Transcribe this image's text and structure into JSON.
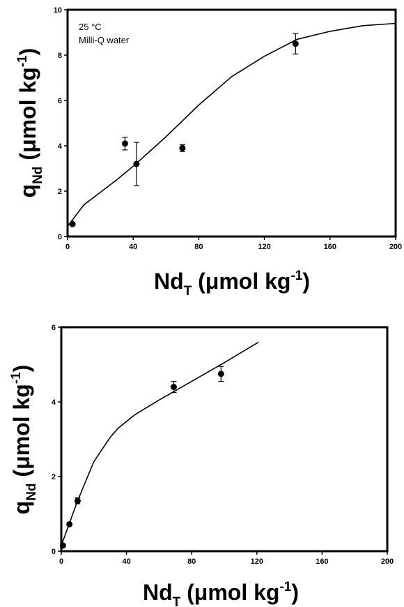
{
  "chart_data": [
    {
      "type": "scatter",
      "annotations": [
        "25 °C",
        "Milli-Q water"
      ],
      "xlabel": {
        "main": "Nd",
        "sub": "T",
        "units": " (μmol kg",
        "sup": "-1",
        "close": ")"
      },
      "ylabel": {
        "main": "q",
        "sub": "Nd",
        "units": " (μmol kg",
        "sup": "-1",
        "close": ")"
      },
      "xlim": [
        0,
        200
      ],
      "ylim": [
        0,
        10
      ],
      "xticks": [
        0,
        40,
        80,
        120,
        160,
        200
      ],
      "yticks": [
        0,
        2,
        4,
        6,
        8,
        10
      ],
      "series": [
        {
          "kind": "points",
          "points": [
            {
              "x": 3,
              "y": 0.55,
              "err": 0
            },
            {
              "x": 35,
              "y": 4.1,
              "err": 0.28
            },
            {
              "x": 42,
              "y": 3.2,
              "err": 0.95
            },
            {
              "x": 70,
              "y": 3.9,
              "err": 0.15
            },
            {
              "x": 139,
              "y": 8.5,
              "err": 0.45
            }
          ]
        },
        {
          "kind": "line",
          "x": [
            0,
            10,
            20,
            30,
            40,
            50,
            60,
            80,
            100,
            120,
            140,
            160,
            180,
            200
          ],
          "y": [
            0.45,
            1.4,
            1.95,
            2.5,
            3.1,
            3.75,
            4.4,
            5.8,
            7.05,
            7.95,
            8.7,
            9.05,
            9.3,
            9.4
          ]
        }
      ]
    },
    {
      "type": "scatter",
      "xlabel": {
        "main": "Nd",
        "sub": "T",
        "units": " (μmol kg",
        "sup": "-1",
        "close": ")"
      },
      "ylabel": {
        "main": "q",
        "sub": "Nd",
        "units": " (μmol kg",
        "sup": "-1",
        "close": ")"
      },
      "xlim": [
        0,
        200
      ],
      "ylim": [
        0,
        6
      ],
      "xticks": [
        0,
        40,
        80,
        120,
        160,
        200
      ],
      "yticks": [
        0,
        2,
        4,
        6
      ],
      "series": [
        {
          "kind": "points",
          "points": [
            {
              "x": 1,
              "y": 0.15,
              "err": 0
            },
            {
              "x": 5,
              "y": 0.72,
              "err": 0
            },
            {
              "x": 10,
              "y": 1.35,
              "err": 0.08
            },
            {
              "x": 69,
              "y": 4.4,
              "err": 0.15
            },
            {
              "x": 98,
              "y": 4.75,
              "err": 0.2
            }
          ]
        },
        {
          "kind": "line",
          "x": [
            0,
            5,
            10,
            20,
            30,
            35,
            45,
            60,
            70,
            80,
            100,
            121
          ],
          "y": [
            0.15,
            0.75,
            1.35,
            2.4,
            3.05,
            3.3,
            3.65,
            4.05,
            4.3,
            4.55,
            5.05,
            5.6
          ]
        }
      ]
    }
  ]
}
